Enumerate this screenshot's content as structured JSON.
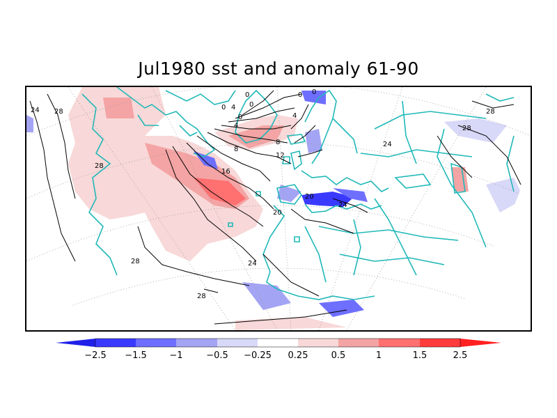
{
  "title": "Jul1980 sst and anomaly 61-90",
  "map": {
    "projection": "polar stereographic (North Atlantic / Europe)",
    "field_shaded": "sst anomaly",
    "field_contoured": "sst",
    "coast_color": "#20b8b8",
    "contour_color": "#000000",
    "contour_labels": [
      {
        "id": "c24-west",
        "text": "24"
      },
      {
        "id": "c28-nw",
        "text": "28"
      },
      {
        "id": "c28-w",
        "text": "28"
      },
      {
        "id": "c28-sw",
        "text": "28"
      },
      {
        "id": "c28-s",
        "text": "28"
      },
      {
        "id": "c24-s",
        "text": "24"
      },
      {
        "id": "c20-s",
        "text": "20"
      },
      {
        "id": "c16",
        "text": "16"
      },
      {
        "id": "c12",
        "text": "12"
      },
      {
        "id": "c8-a",
        "text": "8"
      },
      {
        "id": "c8-b",
        "text": "8"
      },
      {
        "id": "c4-a",
        "text": "4"
      },
      {
        "id": "c4-b",
        "text": "4"
      },
      {
        "id": "c4-c",
        "text": "4"
      },
      {
        "id": "c0-a",
        "text": "0"
      },
      {
        "id": "c0-b",
        "text": "0"
      },
      {
        "id": "c0-c",
        "text": "0"
      },
      {
        "id": "c0-d",
        "text": "0"
      },
      {
        "id": "c0-e",
        "text": "0"
      },
      {
        "id": "c0-f",
        "text": "0"
      },
      {
        "id": "c20-med",
        "text": "20"
      },
      {
        "id": "c24-med",
        "text": "24"
      },
      {
        "id": "c24-cas",
        "text": "24"
      },
      {
        "id": "c28-ne",
        "text": "28"
      },
      {
        "id": "c28-e",
        "text": "28"
      }
    ]
  },
  "colorbar": {
    "colors": {
      "neg_arrow": "#2020e8",
      "neg": [
        "#3a3aff",
        "#6e6eff",
        "#a4a4f4",
        "#d8d8f8"
      ],
      "pos": [
        "#f8d8d8",
        "#f4a4a4",
        "#ff7070",
        "#ff3c3c"
      ],
      "pos_arrow": "#ff2020"
    },
    "labels": [
      "−2.5",
      "−1.5",
      "−1",
      "−0.5",
      "−0.25",
      "0.25",
      "0.5",
      "1",
      "1.5",
      "2.5"
    ]
  }
}
